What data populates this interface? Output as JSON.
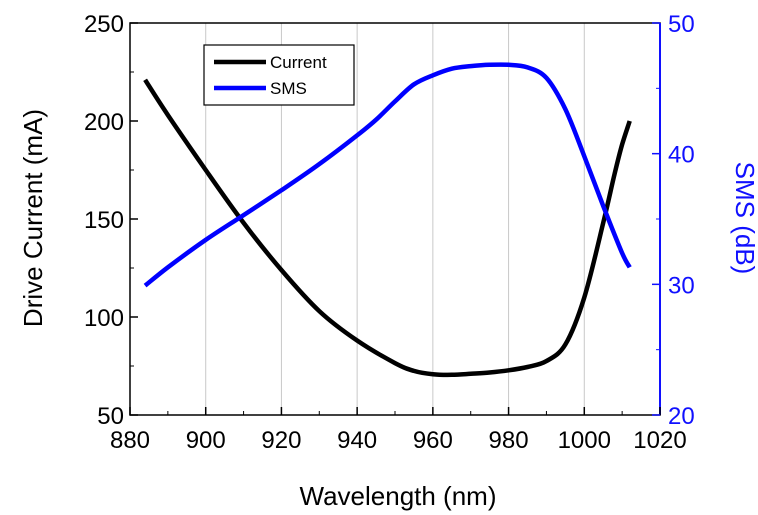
{
  "chart_data": {
    "type": "line",
    "xlabel": "Wavelength (nm)",
    "ylabel_left": "Drive Current (mA)",
    "ylabel_right": "SMS (dB)",
    "xlim": [
      880,
      1020
    ],
    "ylim_left": [
      50,
      250
    ],
    "ylim_right": [
      20,
      50
    ],
    "x_ticks": [
      880,
      900,
      920,
      940,
      960,
      980,
      1000,
      1020
    ],
    "y_left_ticks": [
      50,
      100,
      150,
      200,
      250
    ],
    "y_right_ticks": [
      20,
      30,
      40,
      50
    ],
    "grid": "vertical",
    "legend_position": "top-left",
    "series": [
      {
        "name": "Current",
        "axis": "left",
        "color": "#000000",
        "x": [
          884,
          890,
          900,
          910,
          920,
          930,
          940,
          950,
          955,
          960,
          965,
          970,
          975,
          980,
          985,
          990,
          995,
          1000,
          1005,
          1008,
          1010,
          1012
        ],
        "y": [
          221,
          203,
          175,
          148,
          124,
          103,
          88,
          76.5,
          72.5,
          70.8,
          70.5,
          71,
          71.7,
          72.8,
          74.5,
          77.5,
          86,
          110,
          148,
          173,
          188,
          200
        ]
      },
      {
        "name": "SMS",
        "axis": "right",
        "color": "#0000ff",
        "x": [
          884,
          890,
          900,
          910,
          920,
          930,
          940,
          945,
          950,
          955,
          960,
          965,
          970,
          975,
          980,
          985,
          990,
          995,
          1000,
          1005,
          1010,
          1012
        ],
        "y": [
          29.9,
          31.3,
          33.4,
          35.3,
          37.2,
          39.2,
          41.4,
          42.6,
          44,
          45.3,
          46,
          46.5,
          46.7,
          46.8,
          46.8,
          46.6,
          45.8,
          43.4,
          39.8,
          36,
          32.4,
          31.3
        ]
      }
    ]
  }
}
